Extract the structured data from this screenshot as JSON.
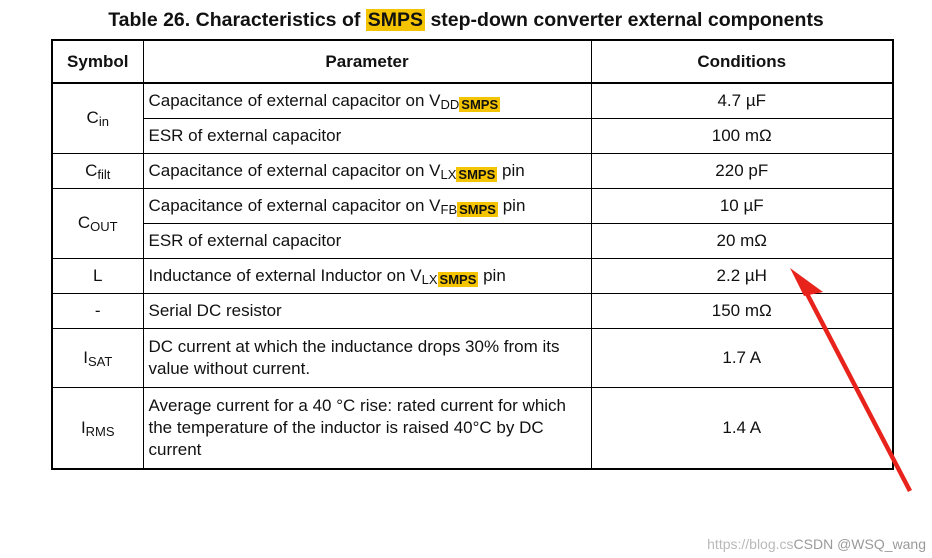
{
  "title": {
    "prefix": "Table 26. Characteristics of ",
    "highlight": "SMPS",
    "suffix": " step-down converter external components"
  },
  "headers": [
    "Symbol",
    "Parameter",
    "Conditions"
  ],
  "rows": [
    {
      "symbol": "C",
      "symbol_sub": "in",
      "param": "Capacitance of external capacitor on V",
      "param_sub": "DD",
      "param_sub_hl": "SMPS",
      "param_tail": "",
      "condition": "4.7 µF"
    },
    {
      "param": "ESR of external capacitor",
      "condition": "100 mΩ"
    },
    {
      "symbol": "C",
      "symbol_sub": "filt",
      "param": "Capacitance of external capacitor on V",
      "param_sub": "LX",
      "param_sub_hl": "SMPS",
      "param_tail": " pin",
      "condition": "220 pF"
    },
    {
      "symbol": "C",
      "symbol_sub": "OUT",
      "param": "Capacitance of external capacitor on V",
      "param_sub": "FB",
      "param_sub_hl": "SMPS",
      "param_tail": " pin",
      "condition": "10 µF"
    },
    {
      "param": "ESR of external capacitor",
      "condition": "20 mΩ"
    },
    {
      "symbol": "L",
      "param": "Inductance of external Inductor on V",
      "param_sub": "LX",
      "param_sub_hl": "SMPS",
      "param_tail": " pin",
      "condition": "2.2 µH"
    },
    {
      "symbol": "-",
      "param": "Serial DC resistor",
      "condition": "150 mΩ"
    },
    {
      "symbol": "I",
      "symbol_sub": "SAT",
      "param": "DC current at which the inductance drops 30% from its value without current.",
      "condition": "1.7 A"
    },
    {
      "symbol": "I",
      "symbol_sub": "RMS",
      "param": "Average current for a 40 °C rise: rated current for which the temperature of the inductor is raised 40°C by DC current",
      "condition": "1.4 A"
    }
  ],
  "watermark": {
    "faint": "https://blog.cs",
    "strong": "CSDN @WSQ_wang"
  },
  "colors": {
    "highlight": "#f5c400",
    "arrow": "#e8231c"
  }
}
